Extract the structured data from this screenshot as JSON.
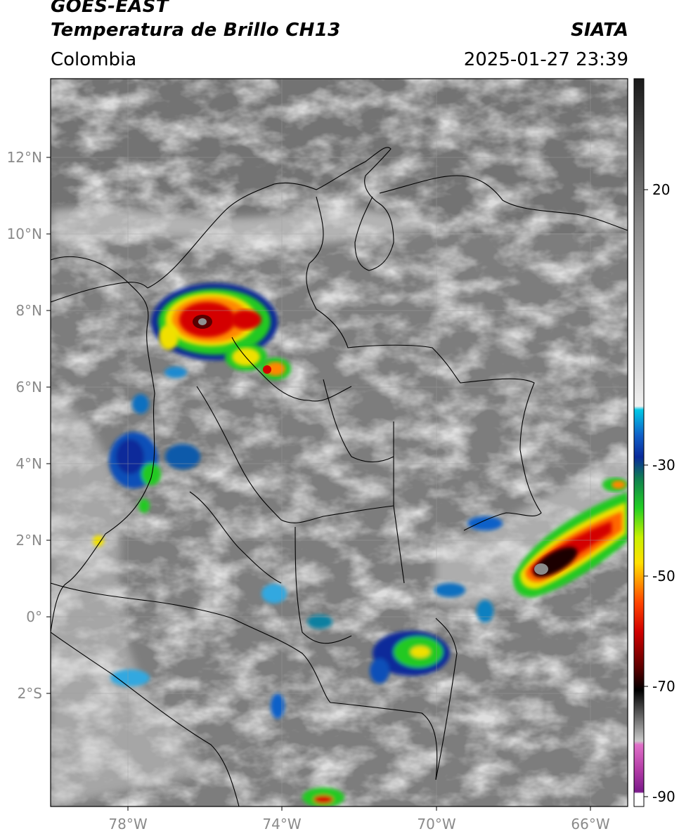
{
  "header": {
    "satellite": "GOES-EAST",
    "product": "Temperatura de Brillo CH13",
    "region": "Colombia",
    "brand": "SIATA",
    "datetime": "2025-01-27 23:39"
  },
  "map": {
    "lat_labels": [
      "12°N",
      "10°N",
      "8°N",
      "6°N",
      "4°N",
      "2°N",
      "0°",
      "2°S"
    ],
    "lon_labels": [
      "78°W",
      "74°W",
      "70°W",
      "66°W"
    ]
  },
  "colorbar": {
    "tick_labels": [
      "20",
      "-30",
      "-50",
      "-70",
      "-90"
    ],
    "colors": {
      "warm": "#2a2a2a",
      "cyan": "#00c8e6",
      "blue": "#0a2a9a",
      "green": "#22c922",
      "yellow": "#f0e000",
      "orange": "#ff8800",
      "red": "#d40000",
      "black": "#050505",
      "magenta": "#e060c0",
      "purple": "#7a1a8a"
    }
  }
}
